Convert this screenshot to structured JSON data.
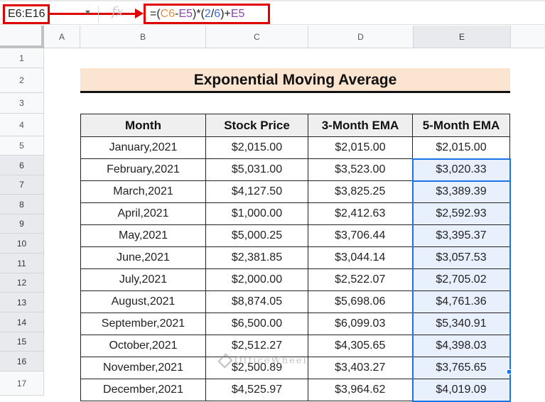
{
  "formula_bar": {
    "name_box": "E6:E16",
    "fx_icon": "fx-icon",
    "formula_parts": {
      "p1": "=(",
      "c6": "C6",
      "minus": "-",
      "e5a": "E5",
      "p2": ")*(",
      "n2": "2",
      "slash": "/",
      "n6": "6",
      "p3": ")+",
      "e5b": "E5"
    }
  },
  "columns": [
    "A",
    "B",
    "C",
    "D",
    "E"
  ],
  "rows": [
    "1",
    "2",
    "3",
    "4",
    "5",
    "6",
    "7",
    "8",
    "9",
    "10",
    "11",
    "12",
    "13",
    "14",
    "15",
    "16",
    "17"
  ],
  "sheet": {
    "title": "Exponential Moving Average",
    "headers": [
      "Month",
      "Stock Price",
      "3-Month EMA",
      "5-Month EMA"
    ],
    "data": [
      [
        "January,2021",
        "$2,015.00",
        "$2,015.00",
        "$2,015.00"
      ],
      [
        "February,2021",
        "$5,031.00",
        "$3,523.00",
        "$3,020.33"
      ],
      [
        "March,2021",
        "$4,127.50",
        "$3,825.25",
        "$3,389.39"
      ],
      [
        "April,2021",
        "$1,000.00",
        "$2,412.63",
        "$2,592.93"
      ],
      [
        "May,2021",
        "$5,000.25",
        "$3,706.44",
        "$3,395.37"
      ],
      [
        "June,2021",
        "$2,381.85",
        "$3,044.14",
        "$3,057.53"
      ],
      [
        "July,2021",
        "$2,000.00",
        "$2,522.07",
        "$2,705.02"
      ],
      [
        "August,2021",
        "$8,874.05",
        "$5,698.06",
        "$4,761.36"
      ],
      [
        "September,2021",
        "$6,500.00",
        "$6,099.03",
        "$5,340.91"
      ],
      [
        "October,2021",
        "$2,512.27",
        "$4,305.65",
        "$4,398.03"
      ],
      [
        "November,2021",
        "$2,500.89",
        "$3,403.27",
        "$3,765.65"
      ],
      [
        "December,2021",
        "$4,525.97",
        "$3,964.62",
        "$4,019.09"
      ]
    ]
  },
  "watermark": "OfficeWheel",
  "colors": {
    "annotation_red": "#e00000",
    "selection_blue": "#1a73e8",
    "title_fill": "#fbe4d0",
    "header_fill": "#efefef"
  }
}
